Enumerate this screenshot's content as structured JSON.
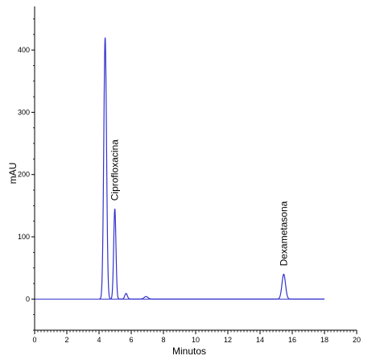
{
  "chart_data": {
    "type": "line",
    "xlabel": "Minutos",
    "ylabel": "mAU",
    "xlim": [
      0,
      20
    ],
    "ylim": [
      -50,
      470
    ],
    "x_ticks": [
      "0",
      "2",
      "4",
      "6",
      "8",
      "10",
      "12",
      "14",
      "16",
      "18",
      "20"
    ],
    "y_ticks": [
      "0",
      "100",
      "200",
      "300",
      "400"
    ],
    "x_minor_per_major": 10,
    "y_minor_per_major": 4,
    "line_color": "#3333cc",
    "baseline_color": "#3333cc",
    "baseline_xrange": [
      0,
      18
    ],
    "trace_xrange": [
      4.0,
      18.0
    ],
    "peaks": [
      {
        "x": 4.38,
        "y": 420,
        "label": ""
      },
      {
        "x": 4.98,
        "y": 145,
        "label": "Ciprofloxacina"
      },
      {
        "x": 5.68,
        "y": 9,
        "label": ""
      },
      {
        "x": 6.92,
        "y": 4,
        "label": ""
      },
      {
        "x": 15.47,
        "y": 40,
        "label": "Dexametasona"
      }
    ]
  }
}
